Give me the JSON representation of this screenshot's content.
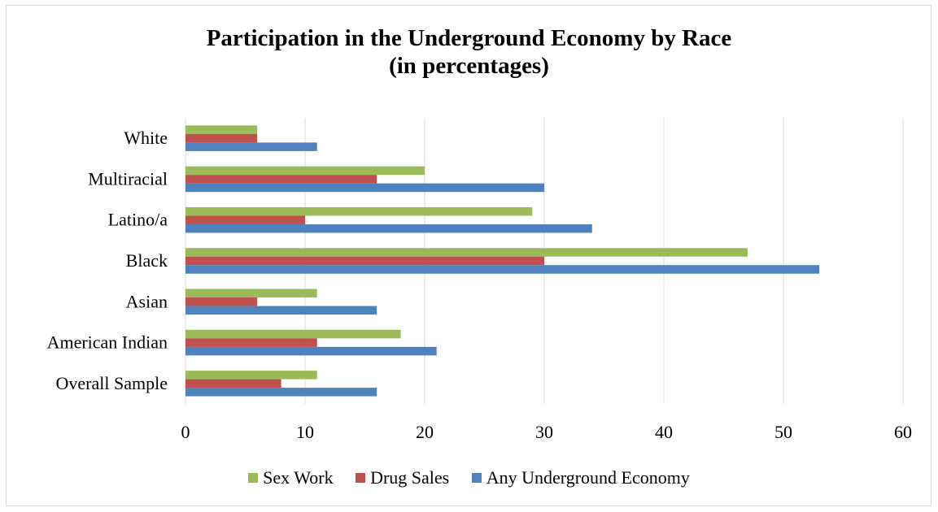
{
  "chart_data": {
    "type": "bar",
    "orientation": "horizontal",
    "title_lines": [
      "Participation in the Underground Economy by Race",
      "(in percentages)"
    ],
    "categories": [
      "Overall Sample",
      "American Indian",
      "Asian",
      "Black",
      "Latino/a",
      "Multiracial",
      "White"
    ],
    "series": [
      {
        "name": "Sex Work",
        "color": "#9bbb59",
        "values": [
          11,
          18,
          11,
          47,
          29,
          20,
          6
        ]
      },
      {
        "name": "Drug Sales",
        "color": "#c0504d",
        "values": [
          8,
          11,
          6,
          30,
          10,
          16,
          6
        ]
      },
      {
        "name": "Any Underground Economy",
        "color": "#4f81bd",
        "values": [
          16,
          21,
          16,
          53,
          34,
          30,
          11
        ]
      }
    ],
    "xlim": [
      0,
      60
    ],
    "xticks": [
      "0",
      "10",
      "20",
      "30",
      "40",
      "50",
      "60"
    ],
    "grid": true,
    "legend_position": "bottom"
  }
}
